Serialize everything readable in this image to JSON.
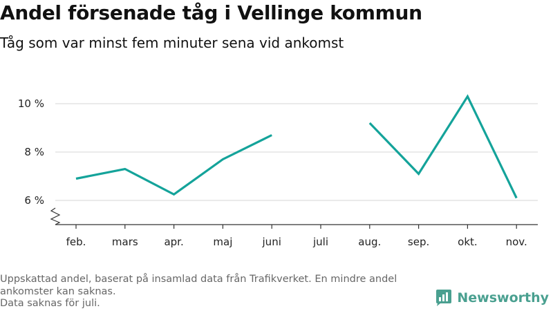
{
  "title": "Andel försenade tåg i Vellinge kommun",
  "subtitle": "Tåg som var minst fem minuter sena vid ankomst",
  "footnote": [
    "Uppskattad andel, baserat på insamlad data från Trafikverket. En mindre andel ankomster kan saknas.",
    "Data saknas för juli."
  ],
  "brand": {
    "name": "Newsworthy",
    "color": "#4aa090"
  },
  "colors": {
    "line": "#14a39a",
    "grid": "#dddddd",
    "axis": "#333333"
  },
  "chart_data": {
    "type": "line",
    "title": "Andel försenade tåg i Vellinge kommun",
    "subtitle": "Tåg som var minst fem minuter sena vid ankomst",
    "categories": [
      "feb.",
      "mars",
      "apr.",
      "maj",
      "juni",
      "juli",
      "aug.",
      "sep.",
      "okt.",
      "nov."
    ],
    "series": [
      {
        "values": [
          6.9,
          7.3,
          6.25,
          7.7,
          8.7,
          null,
          9.2,
          7.1,
          10.3,
          6.1
        ]
      }
    ],
    "yticks": [
      6,
      8,
      10
    ],
    "ytick_labels": [
      "6 %",
      "8 %",
      "10 %"
    ],
    "ylim": [
      5.2,
      10.6
    ],
    "y_axis_break": true,
    "grid": true,
    "legend": "none"
  }
}
